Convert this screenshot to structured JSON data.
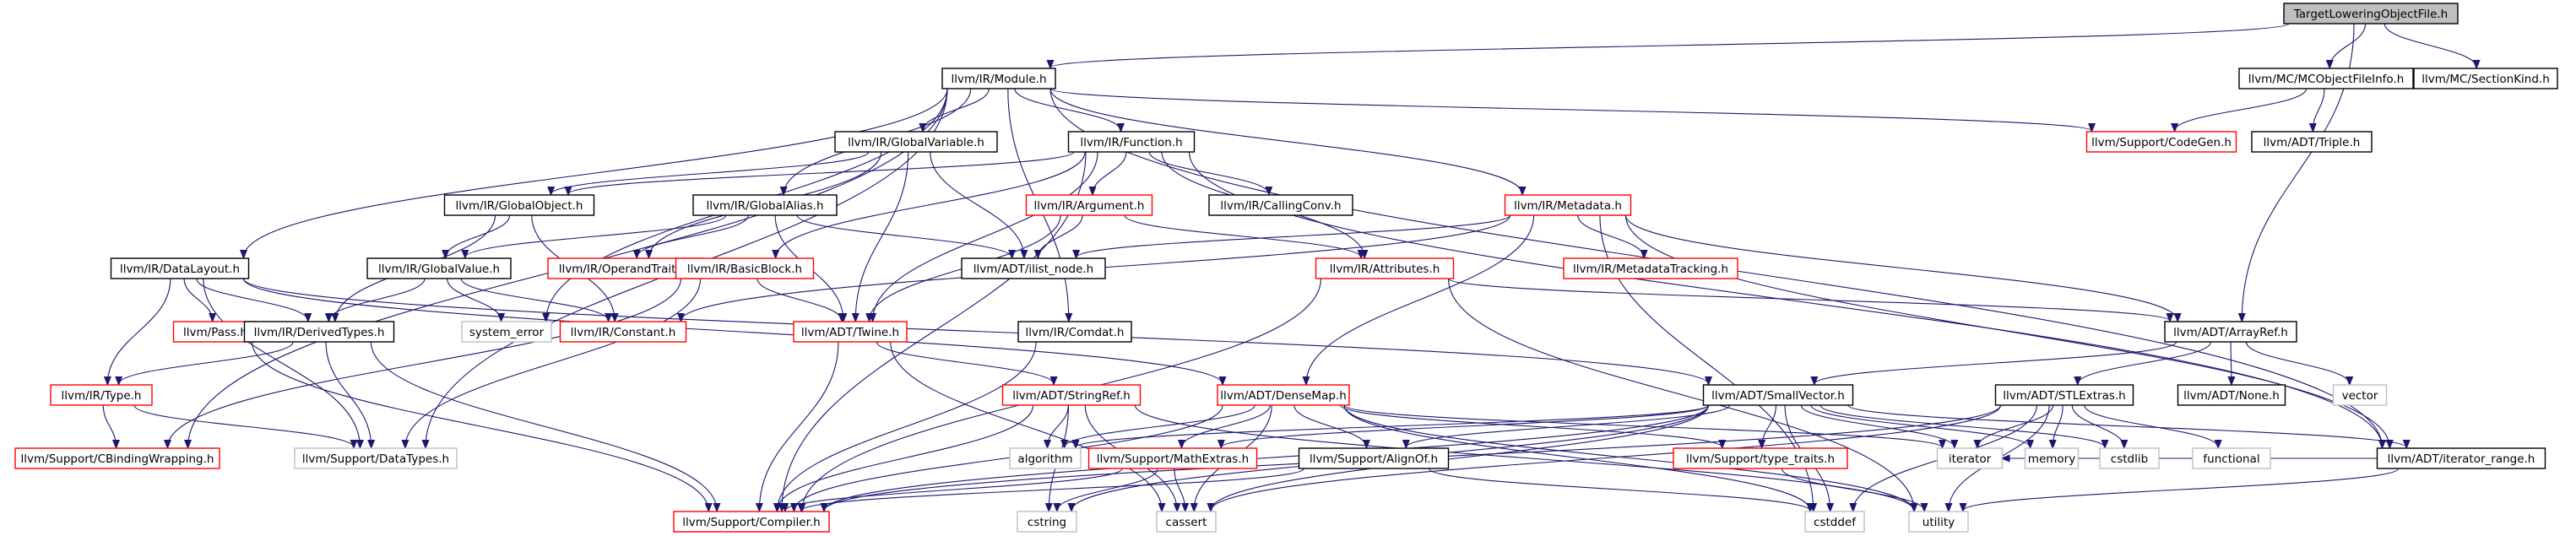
{
  "diagram": {
    "type": "include-dependency-graph",
    "root": "TargetLoweringObjectFile.h",
    "colors": {
      "edge": "#191970",
      "root_fill": "#bfbfbf",
      "root_border": "#000000",
      "documented_border": "#000000",
      "truncated_border": "#ff0000",
      "external_border": "#bfbfbf",
      "text": "#000000"
    },
    "nodes": [
      {
        "id": "root",
        "label": "TargetLoweringObjectFile.h",
        "kind": "root"
      },
      {
        "id": "module",
        "label": "llvm/IR/Module.h",
        "kind": "doc"
      },
      {
        "id": "mcobj",
        "label": "llvm/MC/MCObjectFileInfo.h",
        "kind": "doc"
      },
      {
        "id": "sectionkind",
        "label": "llvm/MC/SectionKind.h",
        "kind": "doc"
      },
      {
        "id": "globalvar",
        "label": "llvm/IR/GlobalVariable.h",
        "kind": "doc"
      },
      {
        "id": "function",
        "label": "llvm/IR/Function.h",
        "kind": "doc"
      },
      {
        "id": "codegen",
        "label": "llvm/Support/CodeGen.h",
        "kind": "trunc"
      },
      {
        "id": "triple",
        "label": "llvm/ADT/Triple.h",
        "kind": "doc"
      },
      {
        "id": "globalobject",
        "label": "llvm/IR/GlobalObject.h",
        "kind": "doc"
      },
      {
        "id": "globalalias",
        "label": "llvm/IR/GlobalAlias.h",
        "kind": "doc"
      },
      {
        "id": "argument",
        "label": "llvm/IR/Argument.h",
        "kind": "trunc"
      },
      {
        "id": "callingconv",
        "label": "llvm/IR/CallingConv.h",
        "kind": "doc"
      },
      {
        "id": "metadata",
        "label": "llvm/IR/Metadata.h",
        "kind": "trunc"
      },
      {
        "id": "datalayout",
        "label": "llvm/IR/DataLayout.h",
        "kind": "doc"
      },
      {
        "id": "globalvalue",
        "label": "llvm/IR/GlobalValue.h",
        "kind": "doc"
      },
      {
        "id": "operandtraits",
        "label": "llvm/IR/OperandTraits.h",
        "kind": "trunc"
      },
      {
        "id": "basicblock",
        "label": "llvm/IR/BasicBlock.h",
        "kind": "trunc"
      },
      {
        "id": "ilistnode",
        "label": "llvm/ADT/ilist_node.h",
        "kind": "doc"
      },
      {
        "id": "attributes",
        "label": "llvm/IR/Attributes.h",
        "kind": "trunc"
      },
      {
        "id": "metadatatracking",
        "label": "llvm/IR/MetadataTracking.h",
        "kind": "trunc"
      },
      {
        "id": "pass",
        "label": "llvm/Pass.h",
        "kind": "trunc"
      },
      {
        "id": "derivedtypes",
        "label": "llvm/IR/DerivedTypes.h",
        "kind": "doc"
      },
      {
        "id": "systemerror",
        "label": "system_error",
        "kind": "ext"
      },
      {
        "id": "constant",
        "label": "llvm/IR/Constant.h",
        "kind": "trunc"
      },
      {
        "id": "twine",
        "label": "llvm/ADT/Twine.h",
        "kind": "trunc"
      },
      {
        "id": "comdat",
        "label": "llvm/IR/Comdat.h",
        "kind": "doc"
      },
      {
        "id": "arrayref",
        "label": "llvm/ADT/ArrayRef.h",
        "kind": "doc"
      },
      {
        "id": "type",
        "label": "llvm/IR/Type.h",
        "kind": "trunc"
      },
      {
        "id": "stringref",
        "label": "llvm/ADT/StringRef.h",
        "kind": "trunc"
      },
      {
        "id": "densemap",
        "label": "llvm/ADT/DenseMap.h",
        "kind": "trunc"
      },
      {
        "id": "smallvector",
        "label": "llvm/ADT/SmallVector.h",
        "kind": "doc"
      },
      {
        "id": "stlextras",
        "label": "llvm/ADT/STLExtras.h",
        "kind": "doc"
      },
      {
        "id": "none",
        "label": "llvm/ADT/None.h",
        "kind": "doc"
      },
      {
        "id": "vector",
        "label": "vector",
        "kind": "ext"
      },
      {
        "id": "cbinding",
        "label": "llvm/Support/CBindingWrapping.h",
        "kind": "trunc"
      },
      {
        "id": "datatypes",
        "label": "llvm/Support/DataTypes.h",
        "kind": "ext"
      },
      {
        "id": "algorithm",
        "label": "algorithm",
        "kind": "ext"
      },
      {
        "id": "mathextras",
        "label": "llvm/Support/MathExtras.h",
        "kind": "trunc"
      },
      {
        "id": "alignof",
        "label": "llvm/Support/AlignOf.h",
        "kind": "doc"
      },
      {
        "id": "typetraits",
        "label": "llvm/Support/type_traits.h",
        "kind": "trunc"
      },
      {
        "id": "iterator",
        "label": "iterator",
        "kind": "ext"
      },
      {
        "id": "memory",
        "label": "memory",
        "kind": "ext"
      },
      {
        "id": "cstdlib",
        "label": "cstdlib",
        "kind": "ext"
      },
      {
        "id": "functional",
        "label": "functional",
        "kind": "ext"
      },
      {
        "id": "iteratorrange",
        "label": "llvm/ADT/iterator_range.h",
        "kind": "doc"
      },
      {
        "id": "compiler",
        "label": "llvm/Support/Compiler.h",
        "kind": "trunc"
      },
      {
        "id": "cstring",
        "label": "cstring",
        "kind": "ext"
      },
      {
        "id": "cassert",
        "label": "cassert",
        "kind": "ext"
      },
      {
        "id": "cstddef",
        "label": "cstddef",
        "kind": "ext"
      },
      {
        "id": "utility",
        "label": "utility",
        "kind": "ext"
      }
    ],
    "edges": [
      [
        "root",
        "module"
      ],
      [
        "root",
        "mcobj"
      ],
      [
        "root",
        "sectionkind"
      ],
      [
        "root",
        "arrayref"
      ],
      [
        "module",
        "globalvar"
      ],
      [
        "module",
        "function"
      ],
      [
        "module",
        "codegen"
      ],
      [
        "module",
        "metadata"
      ],
      [
        "module",
        "datalayout"
      ],
      [
        "module",
        "globalalias"
      ],
      [
        "module",
        "comdat"
      ],
      [
        "module",
        "iteratorrange"
      ],
      [
        "module",
        "cbinding"
      ],
      [
        "module",
        "datatypes"
      ],
      [
        "module",
        "systemerror"
      ],
      [
        "mcobj",
        "codegen"
      ],
      [
        "mcobj",
        "triple"
      ],
      [
        "globalvar",
        "globalobject"
      ],
      [
        "globalvar",
        "ilistnode"
      ],
      [
        "globalvar",
        "twine"
      ],
      [
        "globalvar",
        "operandtraits"
      ],
      [
        "function",
        "globalobject"
      ],
      [
        "function",
        "argument"
      ],
      [
        "function",
        "callingconv"
      ],
      [
        "function",
        "attributes"
      ],
      [
        "function",
        "basicblock"
      ],
      [
        "function",
        "twine"
      ],
      [
        "function",
        "iteratorrange"
      ],
      [
        "function",
        "compiler"
      ],
      [
        "globalobject",
        "globalvalue"
      ],
      [
        "globalobject",
        "derivedtypes"
      ],
      [
        "globalobject",
        "constant"
      ],
      [
        "globalalias",
        "globalvalue"
      ],
      [
        "globalalias",
        "ilistnode"
      ],
      [
        "globalalias",
        "twine"
      ],
      [
        "globalalias",
        "operandtraits"
      ],
      [
        "argument",
        "ilistnode"
      ],
      [
        "argument",
        "attributes"
      ],
      [
        "argument",
        "twine"
      ],
      [
        "metadata",
        "ilistnode"
      ],
      [
        "metadata",
        "metadatatracking"
      ],
      [
        "metadata",
        "densemap"
      ],
      [
        "metadata",
        "arrayref"
      ],
      [
        "metadata",
        "iteratorrange"
      ],
      [
        "metadata",
        "constant"
      ],
      [
        "metadata",
        "cstddef"
      ],
      [
        "datalayout",
        "pass"
      ],
      [
        "datalayout",
        "derivedtypes"
      ],
      [
        "datalayout",
        "type"
      ],
      [
        "datalayout",
        "densemap"
      ],
      [
        "datalayout",
        "datatypes"
      ],
      [
        "datalayout",
        "smallvector"
      ],
      [
        "globalvalue",
        "derivedtypes"
      ],
      [
        "globalvalue",
        "constant"
      ],
      [
        "globalvalue",
        "systemerror"
      ],
      [
        "basicblock",
        "twine"
      ],
      [
        "basicblock",
        "cbinding"
      ],
      [
        "basicblock",
        "datatypes"
      ],
      [
        "attributes",
        "arrayref"
      ],
      [
        "attributes",
        "compiler"
      ],
      [
        "attributes",
        "utility"
      ],
      [
        "derivedtypes",
        "type"
      ],
      [
        "derivedtypes",
        "datatypes"
      ],
      [
        "derivedtypes",
        "compiler"
      ],
      [
        "pass",
        "compiler"
      ],
      [
        "twine",
        "stringref"
      ],
      [
        "twine",
        "compiler"
      ],
      [
        "twine",
        "cassert"
      ],
      [
        "comdat",
        "compiler"
      ],
      [
        "arrayref",
        "smallvector"
      ],
      [
        "arrayref",
        "stlextras"
      ],
      [
        "arrayref",
        "none"
      ],
      [
        "arrayref",
        "vector"
      ],
      [
        "type",
        "cbinding"
      ],
      [
        "type",
        "datatypes"
      ],
      [
        "stringref",
        "algorithm"
      ],
      [
        "stringref",
        "compiler"
      ],
      [
        "stringref",
        "cstring"
      ],
      [
        "stringref",
        "cassert"
      ],
      [
        "stringref",
        "utility"
      ],
      [
        "densemap",
        "algorithm"
      ],
      [
        "densemap",
        "mathextras"
      ],
      [
        "densemap",
        "alignof"
      ],
      [
        "densemap",
        "typetraits"
      ],
      [
        "densemap",
        "compiler"
      ],
      [
        "densemap",
        "cassert"
      ],
      [
        "densemap",
        "iterator"
      ],
      [
        "densemap",
        "cstddef"
      ],
      [
        "densemap",
        "utility"
      ],
      [
        "smallvector",
        "algorithm"
      ],
      [
        "smallvector",
        "mathextras"
      ],
      [
        "smallvector",
        "alignof"
      ],
      [
        "smallvector",
        "typetraits"
      ],
      [
        "smallvector",
        "iterator"
      ],
      [
        "smallvector",
        "memory"
      ],
      [
        "smallvector",
        "cstdlib"
      ],
      [
        "smallvector",
        "iteratorrange"
      ],
      [
        "smallvector",
        "compiler"
      ],
      [
        "smallvector",
        "cassert"
      ],
      [
        "smallvector",
        "cstddef"
      ],
      [
        "smallvector",
        "cstring"
      ],
      [
        "stlextras",
        "iterator"
      ],
      [
        "stlextras",
        "memory"
      ],
      [
        "stlextras",
        "cstdlib"
      ],
      [
        "stlextras",
        "functional"
      ],
      [
        "stlextras",
        "compiler"
      ],
      [
        "stlextras",
        "cassert"
      ],
      [
        "stlextras",
        "cstddef"
      ],
      [
        "stlextras",
        "utility"
      ],
      [
        "mathextras",
        "compiler"
      ],
      [
        "mathextras",
        "cassert"
      ],
      [
        "mathextras",
        "cstring"
      ],
      [
        "alignof",
        "compiler"
      ],
      [
        "alignof",
        "cstddef"
      ],
      [
        "typetraits",
        "utility"
      ],
      [
        "iteratorrange",
        "utility"
      ],
      [
        "iteratorrange",
        "iterator"
      ]
    ]
  }
}
